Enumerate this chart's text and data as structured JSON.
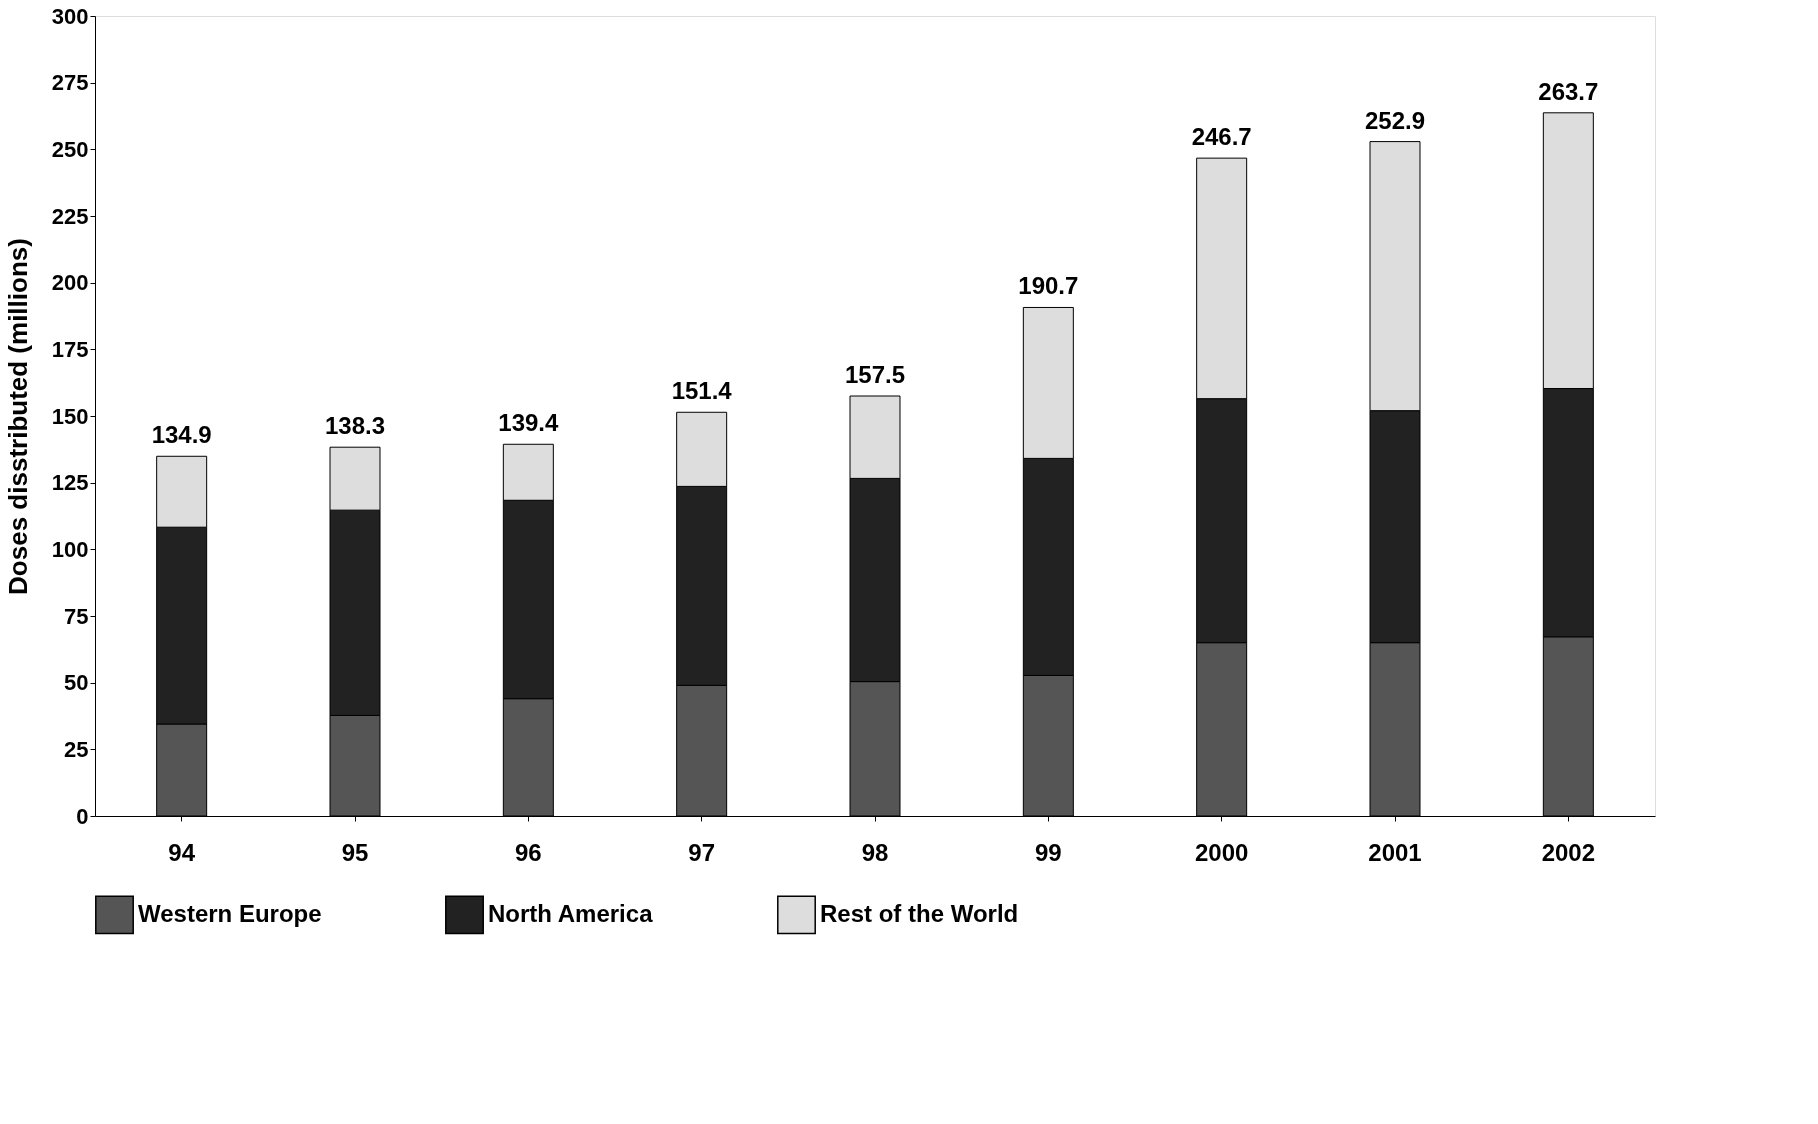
{
  "chart_data": {
    "type": "bar",
    "stacked": true,
    "ylabel": "Doses disstributed  (millions)",
    "categories": [
      "94",
      "95",
      "96",
      "97",
      "98",
      "99",
      "2000",
      "2001",
      "2002"
    ],
    "series": [
      {
        "name": "Western Europe",
        "color": "#555555",
        "values": [
          34.5,
          37.7,
          44,
          49,
          50.4,
          52.7,
          65,
          65,
          67.2
        ]
      },
      {
        "name": "North America",
        "color": "#222222",
        "values": [
          73.8,
          77.0,
          74.4,
          74.6,
          76.2,
          81.4,
          91.5,
          87,
          93.1
        ]
      },
      {
        "name": "Rest of the World",
        "color": "#dddddd",
        "values": [
          26.6,
          23.6,
          21.0,
          27.8,
          30.9,
          56.6,
          90.2,
          100.9,
          103.4
        ]
      }
    ],
    "totals": [
      "134.9",
      "138.3",
      "139.4",
      "151.4",
      "157.5",
      "190.7",
      "246.7",
      "252.9",
      "263.7"
    ],
    "ylim": [
      0,
      300
    ],
    "yticks": [
      0,
      25,
      50,
      75,
      100,
      125,
      150,
      175,
      200,
      225,
      250,
      275,
      300
    ],
    "grid": false,
    "legend": "bottom"
  }
}
